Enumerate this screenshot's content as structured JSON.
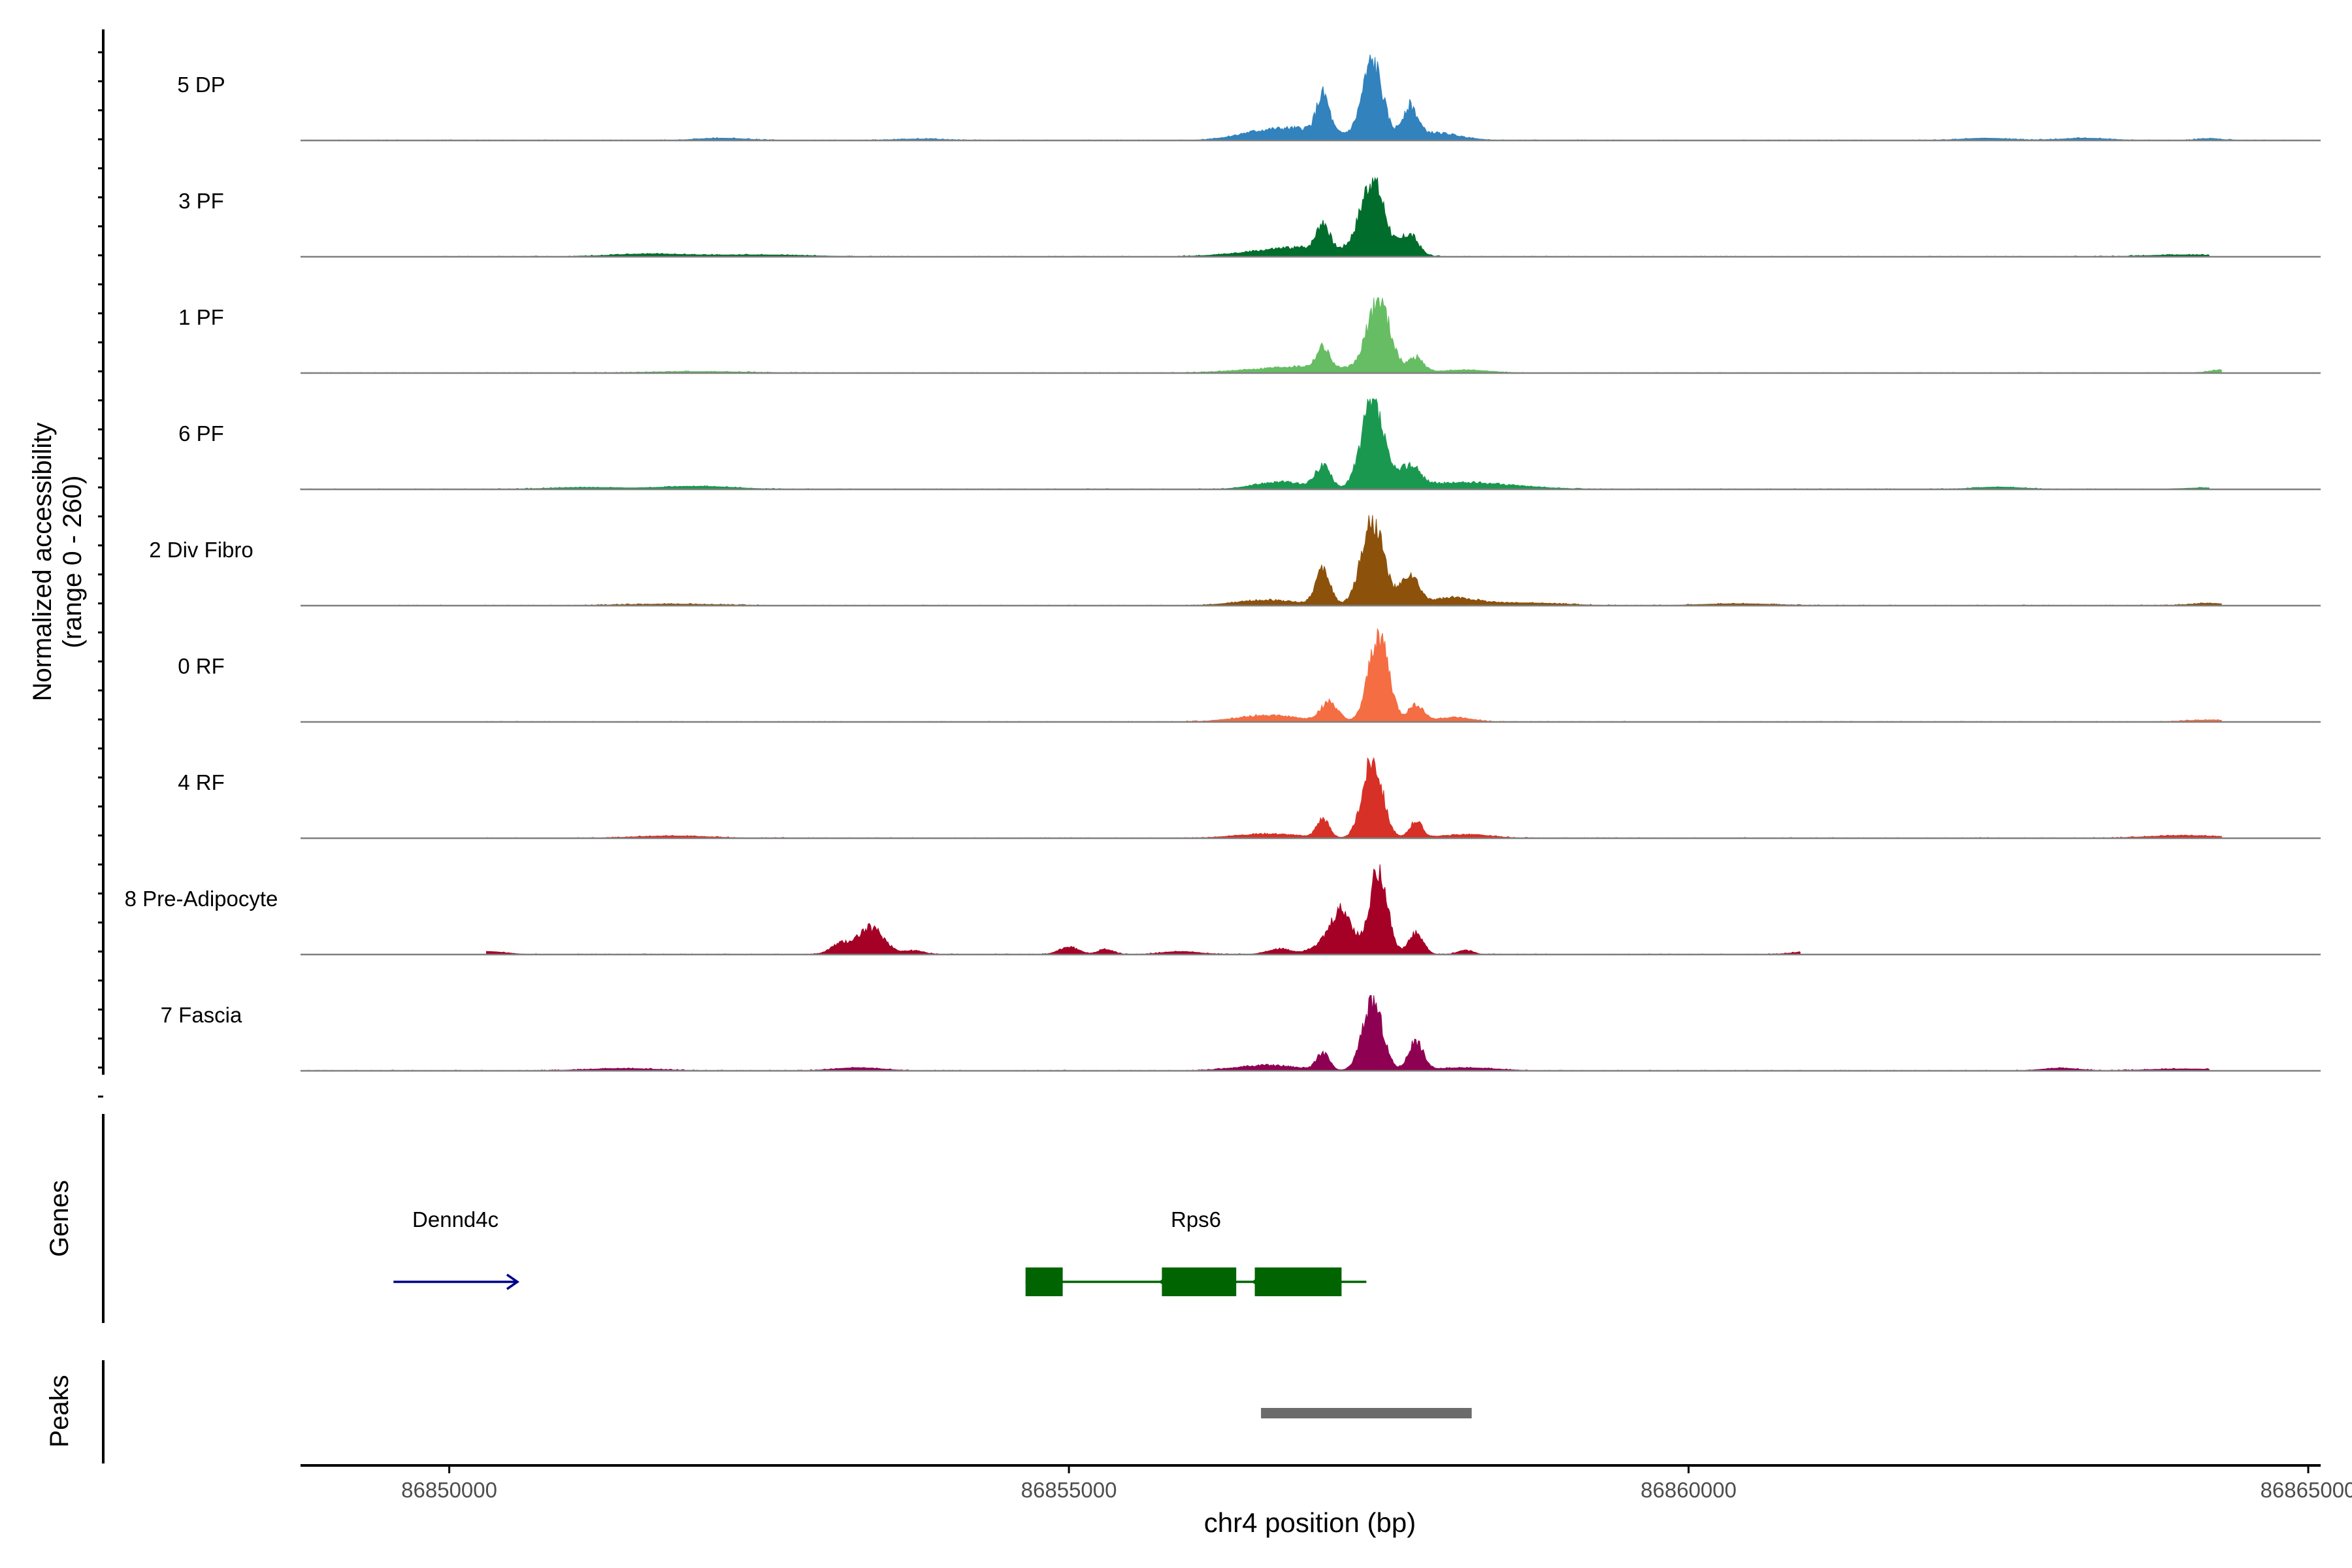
{
  "chart_data": {
    "type": "area",
    "title": "",
    "ylabel": "Normalized accessibility",
    "ylabel_sub": "(range 0 - 260)",
    "xlabel": "chr4 position (bp)",
    "xlim": [
      86848800,
      86865100
    ],
    "xticks": [
      86850000,
      86855000,
      86860000,
      86865000
    ],
    "xtick_labels": [
      "86850000",
      "86855000",
      "86860000",
      "86865000"
    ],
    "ylim": [
      0,
      260
    ],
    "grid": false,
    "legend": "none",
    "peak_summit_bp": 86857450,
    "tracks": [
      {
        "name": "5 DP",
        "color": "#3182bd",
        "summit": 230,
        "peaks": [
          [
            86857450,
            200,
            80
          ],
          [
            86857050,
            95,
            50
          ],
          [
            86857750,
            80,
            60
          ],
          [
            86856900,
            30,
            300
          ],
          [
            86857950,
            20,
            200
          ],
          [
            86856500,
            12,
            200
          ],
          [
            86852200,
            6,
            200
          ],
          [
            86862400,
            6,
            200
          ],
          [
            86863200,
            6,
            200
          ],
          [
            86864200,
            5,
            100
          ],
          [
            86853800,
            4,
            200
          ]
        ]
      },
      {
        "name": "3 PF",
        "color": "#006d2c",
        "summit": 210,
        "peaks": [
          [
            86857450,
            195,
            95
          ],
          [
            86857050,
            70,
            50
          ],
          [
            86857750,
            55,
            70
          ],
          [
            86856900,
            25,
            400
          ],
          [
            86851600,
            7,
            300
          ],
          [
            86852500,
            5,
            400
          ],
          [
            86864000,
            5,
            300
          ]
        ]
      },
      {
        "name": "1 PF",
        "color": "#66bd63",
        "summit": 200,
        "peaks": [
          [
            86857500,
            190,
            90
          ],
          [
            86857050,
            55,
            50
          ],
          [
            86857800,
            40,
            60
          ],
          [
            86856900,
            18,
            400
          ],
          [
            86858200,
            8,
            200
          ],
          [
            86864300,
            8,
            100
          ],
          [
            86852000,
            4,
            400
          ]
        ]
      },
      {
        "name": "6 PF",
        "color": "#1a9850",
        "summit": 240,
        "peaks": [
          [
            86857450,
            225,
            90
          ],
          [
            86857050,
            60,
            60
          ],
          [
            86857750,
            55,
            80
          ],
          [
            86856700,
            20,
            200
          ],
          [
            86858200,
            18,
            400
          ],
          [
            86852000,
            8,
            300
          ],
          [
            86862500,
            6,
            200
          ],
          [
            86851100,
            5,
            300
          ],
          [
            86864200,
            4,
            200
          ]
        ]
      },
      {
        "name": "2 Div Fibro",
        "color": "#8c510a",
        "summit": 240,
        "peaks": [
          [
            86857450,
            225,
            90
          ],
          [
            86857050,
            90,
            60
          ],
          [
            86857750,
            75,
            70
          ],
          [
            86856600,
            15,
            250
          ],
          [
            86858100,
            20,
            200
          ],
          [
            86858700,
            7,
            300
          ],
          [
            86860400,
            5,
            300
          ],
          [
            86864200,
            6,
            150
          ],
          [
            86851800,
            4,
            400
          ]
        ]
      },
      {
        "name": "0 RF",
        "color": "#f46d43",
        "summit": 250,
        "peaks": [
          [
            86857500,
            230,
            80
          ],
          [
            86857100,
            50,
            70
          ],
          [
            86857800,
            45,
            60
          ],
          [
            86856600,
            18,
            250
          ],
          [
            86858100,
            12,
            150
          ],
          [
            86864200,
            5,
            200
          ]
        ]
      },
      {
        "name": "4 RF",
        "color": "#d73027",
        "summit": 220,
        "peaks": [
          [
            86857450,
            205,
            80
          ],
          [
            86857050,
            50,
            50
          ],
          [
            86857800,
            45,
            50
          ],
          [
            86856600,
            12,
            250
          ],
          [
            86858200,
            10,
            200
          ],
          [
            86851800,
            6,
            300
          ],
          [
            86864000,
            7,
            300
          ]
        ]
      },
      {
        "name": "8 Pre-Adipocyte",
        "color": "#a50026",
        "summit": 255,
        "peaks": [
          [
            86857500,
            230,
            70
          ],
          [
            86857200,
            115,
            90
          ],
          [
            86857800,
            55,
            60
          ],
          [
            86853400,
            70,
            110
          ],
          [
            86853150,
            25,
            80
          ],
          [
            86853750,
            10,
            80
          ],
          [
            86856700,
            15,
            100
          ],
          [
            86857000,
            18,
            80
          ],
          [
            86858200,
            12,
            60
          ],
          [
            86855000,
            20,
            80
          ],
          [
            86855300,
            15,
            60
          ],
          [
            86850300,
            8,
            150
          ],
          [
            86855900,
            8,
            150
          ],
          [
            86861000,
            8,
            150
          ]
        ]
      },
      {
        "name": "7 Fascia",
        "color": "#8e0152",
        "summit": 200,
        "peaks": [
          [
            86857450,
            185,
            80
          ],
          [
            86857050,
            45,
            50
          ],
          [
            86857800,
            75,
            60
          ],
          [
            86856600,
            15,
            250
          ],
          [
            86858200,
            8,
            250
          ],
          [
            86853300,
            8,
            200
          ],
          [
            86851400,
            6,
            300
          ],
          [
            86863000,
            7,
            150
          ],
          [
            86864000,
            5,
            300
          ]
        ]
      }
    ],
    "track_extents": [
      [
        86848800,
        86865100
      ],
      [
        86849800,
        86864200
      ],
      [
        86848800,
        86864300
      ],
      [
        86848800,
        86864200
      ],
      [
        86849600,
        86864300
      ],
      [
        86850300,
        86864300
      ],
      [
        86850300,
        86864300
      ],
      [
        86850300,
        86860900
      ],
      [
        86848800,
        86864200
      ]
    ],
    "genes_label": "Genes",
    "genes": [
      {
        "name": "Dennd4c",
        "strand": "+",
        "start": 86849550,
        "end": 86850550,
        "color": "#00008b",
        "exons": []
      },
      {
        "name": "Rps6",
        "strand": "-",
        "start": 86854650,
        "end": 86857400,
        "color": "#006400",
        "exons": [
          [
            86854650,
            86854950
          ],
          [
            86855750,
            86856350
          ],
          [
            86856500,
            86857200
          ]
        ]
      }
    ],
    "peaks_label": "Peaks",
    "peak_regions": [
      {
        "start": 86856550,
        "end": 86858250,
        "color": "#6b6b6b"
      }
    ]
  }
}
